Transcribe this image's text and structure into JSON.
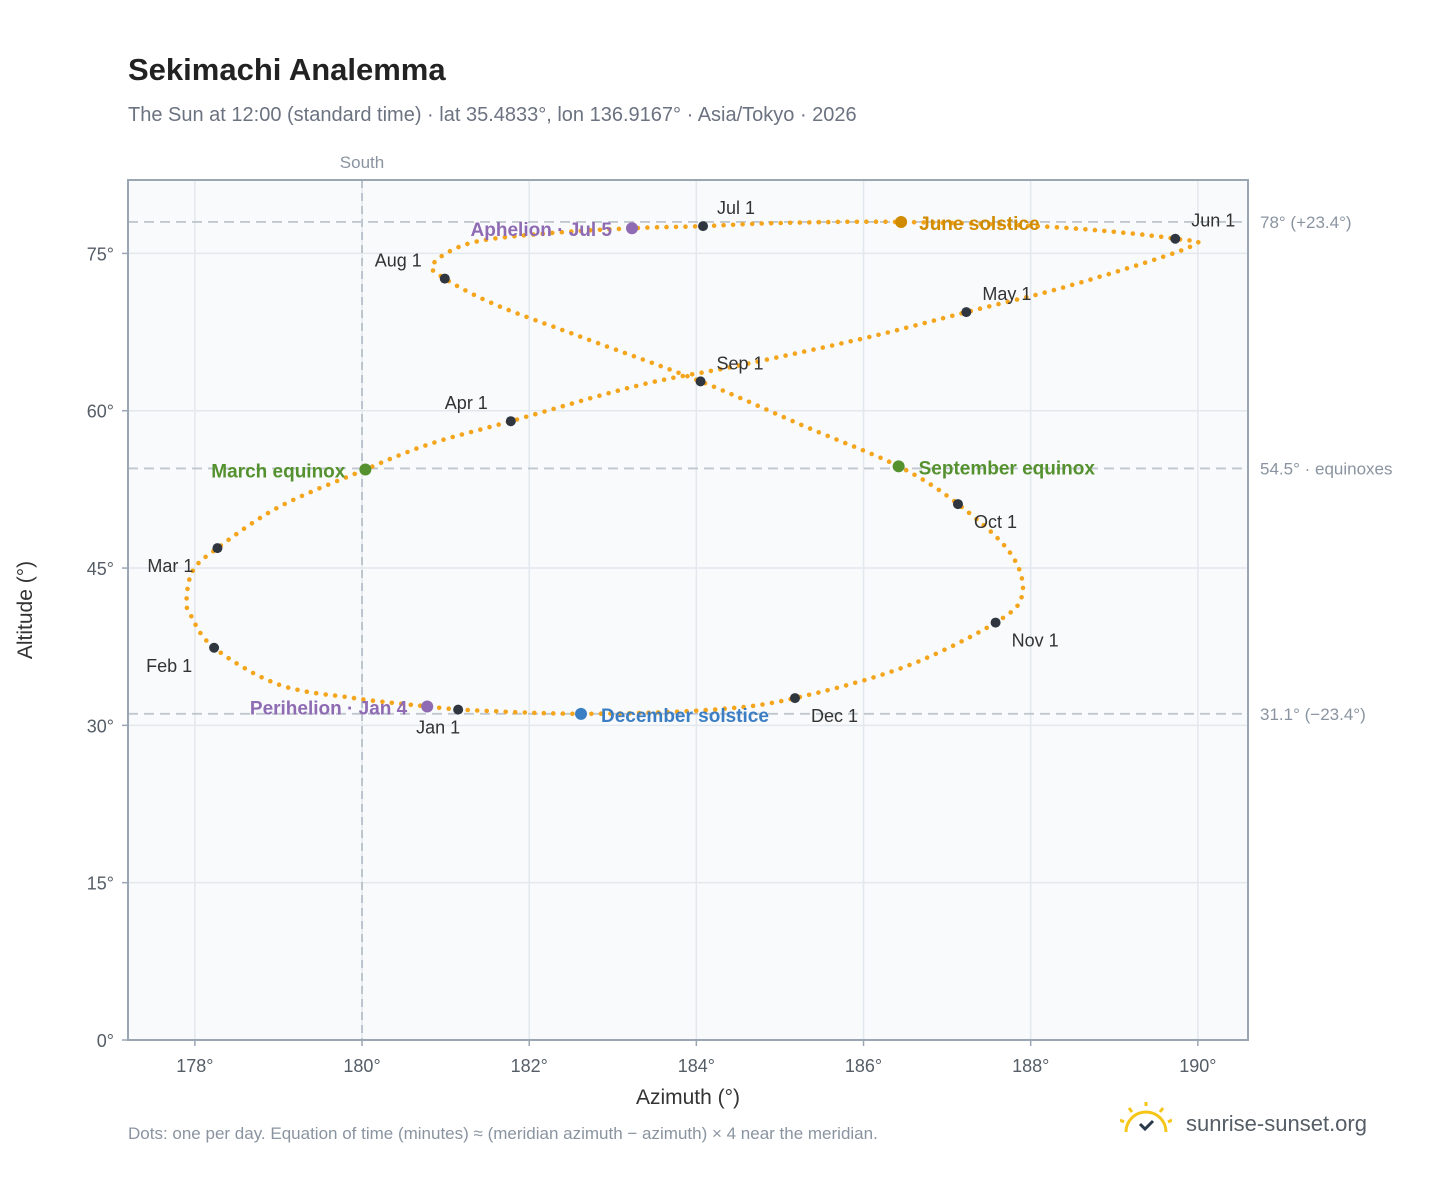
{
  "title": "Sekimachi Analemma",
  "subtitle": "The Sun at 12:00 (standard time) · lat 35.4833°, lon 136.9167° · Asia/Tokyo · 2026",
  "footnote": "Dots: one per day. Equation of time (minutes) ≈ (meridian azimuth − azimuth) × 4 near the meridian.",
  "brand": {
    "name": "sunrise-sunset.org",
    "icon": "sun-logo-icon"
  },
  "colors": {
    "curve": "#f4a51c",
    "month_marker": "#2f3640",
    "june_solstice": "#d18b00",
    "december_solstice": "#3b7ec3",
    "equinox": "#55922f",
    "aphelion_perihelion": "#8e6bb3",
    "plot_bg": "#f8fafc",
    "grid": "#e3e8ee",
    "reference_line": "#c0c7cf",
    "frame": "#9aa6b2"
  },
  "chart_data": {
    "type": "scatter",
    "title": "Sekimachi Analemma",
    "xlabel": "Azimuth (°)",
    "ylabel": "Altitude (°)",
    "xlim": [
      177.2,
      190.6
    ],
    "ylim": [
      0,
      82
    ],
    "x_ticks": [
      178,
      180,
      182,
      184,
      186,
      188,
      190
    ],
    "y_ticks": [
      0,
      15,
      30,
      45,
      60,
      75
    ],
    "tick_suffix": "°",
    "grid": true,
    "south_line": {
      "x": 180,
      "label": "South"
    },
    "reference_lines": [
      {
        "y": 78.0,
        "label": "78° (+23.4°)"
      },
      {
        "y": 54.5,
        "label": "54.5° · equinoxes"
      },
      {
        "y": 31.1,
        "label": "31.1° (−23.4°)"
      }
    ],
    "month_markers": [
      {
        "label": "Jan 1",
        "az": 181.15,
        "alt": 31.5
      },
      {
        "label": "Feb 1",
        "az": 178.23,
        "alt": 37.4
      },
      {
        "label": "Mar 1",
        "az": 178.27,
        "alt": 46.9
      },
      {
        "label": "Apr 1",
        "az": 181.78,
        "alt": 59.0
      },
      {
        "label": "May 1",
        "az": 187.23,
        "alt": 69.4
      },
      {
        "label": "Jun 1",
        "az": 189.73,
        "alt": 76.4
      },
      {
        "label": "Jul 1",
        "az": 184.08,
        "alt": 77.6
      },
      {
        "label": "Aug 1",
        "az": 180.99,
        "alt": 72.6
      },
      {
        "label": "Sep 1",
        "az": 184.05,
        "alt": 62.8
      },
      {
        "label": "Oct 1",
        "az": 187.13,
        "alt": 51.1
      },
      {
        "label": "Nov 1",
        "az": 187.58,
        "alt": 39.8
      },
      {
        "label": "Dec 1",
        "az": 185.18,
        "alt": 32.6
      }
    ],
    "events": [
      {
        "label": "June solstice",
        "az": 186.45,
        "alt": 78.0,
        "kind": "june_solstice"
      },
      {
        "label": "December solstice",
        "az": 182.62,
        "alt": 31.1,
        "kind": "december_solstice"
      },
      {
        "label": "March equinox",
        "az": 180.04,
        "alt": 54.4,
        "kind": "equinox"
      },
      {
        "label": "September equinox",
        "az": 186.42,
        "alt": 54.7,
        "kind": "equinox"
      },
      {
        "label": "Aphelion · Jul 5",
        "az": 183.23,
        "alt": 77.4,
        "kind": "aphelion_perihelion"
      },
      {
        "label": "Perihelion · Jan 4",
        "az": 180.78,
        "alt": 31.8,
        "kind": "aphelion_perihelion"
      }
    ],
    "daily_path_knots": [
      [
        181.15,
        31.5
      ],
      [
        180.78,
        31.8
      ],
      [
        179.9,
        32.6
      ],
      [
        179.0,
        33.9
      ],
      [
        178.23,
        37.4
      ],
      [
        177.95,
        40.5
      ],
      [
        177.9,
        42.0
      ],
      [
        177.98,
        44.8
      ],
      [
        178.27,
        46.9
      ],
      [
        179.0,
        50.8
      ],
      [
        180.04,
        54.4
      ],
      [
        180.8,
        56.8
      ],
      [
        181.78,
        59.0
      ],
      [
        183.3,
        62.4
      ],
      [
        184.5,
        64.3
      ],
      [
        186.0,
        66.9
      ],
      [
        187.23,
        69.4
      ],
      [
        188.5,
        72.0
      ],
      [
        189.9,
        75.6
      ],
      [
        189.73,
        76.4
      ],
      [
        188.3,
        77.5
      ],
      [
        186.45,
        78.0
      ],
      [
        185.0,
        77.9
      ],
      [
        184.08,
        77.6
      ],
      [
        183.23,
        77.4
      ],
      [
        182.2,
        76.9
      ],
      [
        181.3,
        76.0
      ],
      [
        180.85,
        74.0
      ],
      [
        180.99,
        72.6
      ],
      [
        181.6,
        70.1
      ],
      [
        182.6,
        67.1
      ],
      [
        184.05,
        62.8
      ],
      [
        185.3,
        58.5
      ],
      [
        186.42,
        54.7
      ],
      [
        187.13,
        51.1
      ],
      [
        187.75,
        46.5
      ],
      [
        187.9,
        42.5
      ],
      [
        187.58,
        39.8
      ],
      [
        186.5,
        35.6
      ],
      [
        185.18,
        32.6
      ],
      [
        184.2,
        31.5
      ],
      [
        182.62,
        31.1
      ],
      [
        181.15,
        31.5
      ]
    ]
  }
}
